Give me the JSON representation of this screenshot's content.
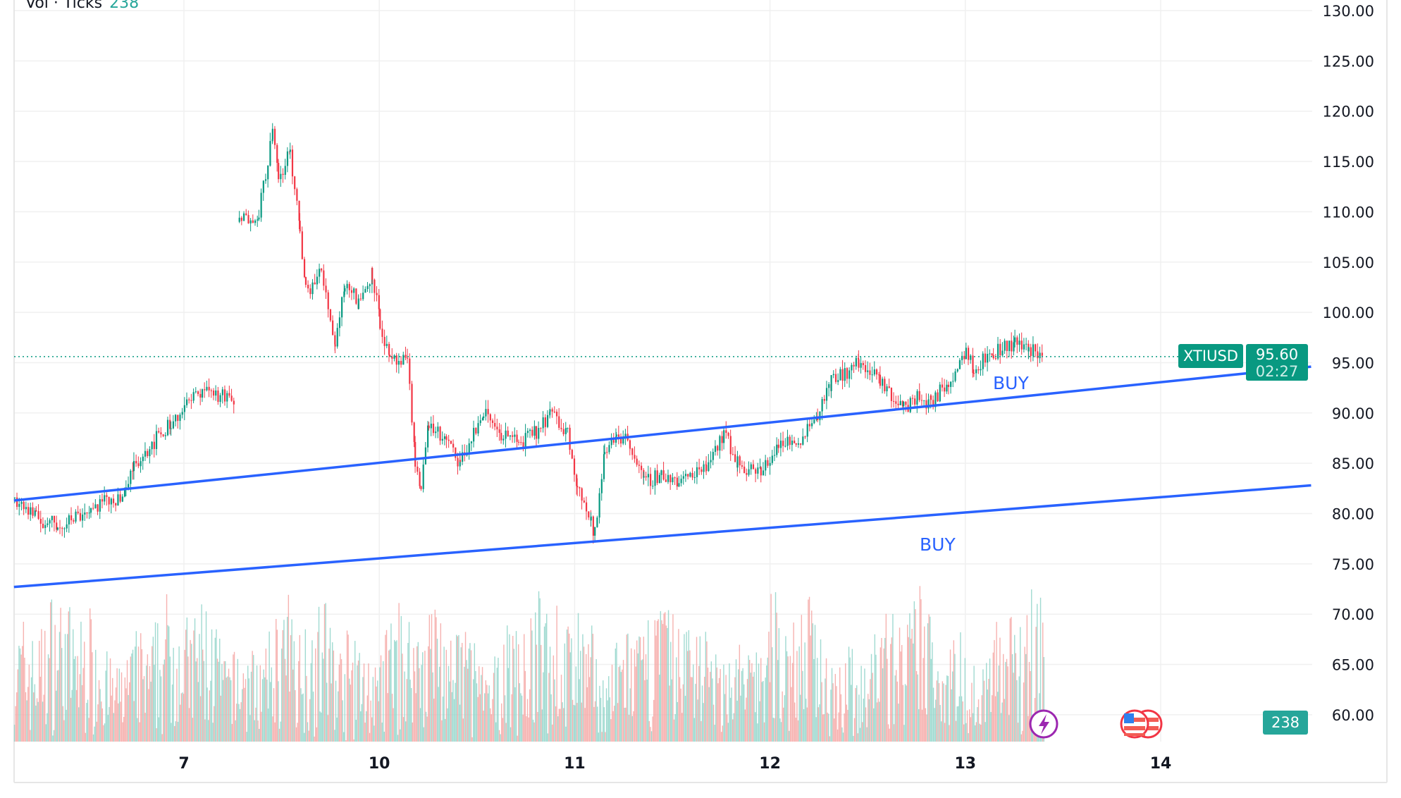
{
  "legend": {
    "label": "Vol · Ticks",
    "value": "238"
  },
  "symbol": "XTIUSD",
  "last_price": "95.60",
  "countdown": "02:27",
  "volume_last": "238",
  "colors": {
    "up": "#089981",
    "down": "#f23645",
    "vol_up": "#8fd3c9",
    "vol_down": "#f5a5a2",
    "trendline": "#2962ff",
    "price_tag": "#089981",
    "vol_tag": "#26a69a"
  },
  "annotations": [
    {
      "text": "BUY"
    },
    {
      "text": "BUY"
    }
  ],
  "icons": [
    "lightning-event-icon",
    "us-flag-icon",
    "us-flag-icon"
  ],
  "chart_data": {
    "type": "candlestick",
    "title": "",
    "x_ticks": [
      "7",
      "10",
      "11",
      "12",
      "13",
      "14"
    ],
    "y_ticks": [
      "130.00",
      "125.00",
      "120.00",
      "115.00",
      "110.00",
      "105.00",
      "100.00",
      "95.00",
      "90.00",
      "85.00",
      "80.00",
      "75.00",
      "70.00",
      "65.00",
      "60.00"
    ],
    "ylim": [
      57,
      130
    ],
    "grid": true,
    "price_path_note_units": "x in date-tick index (7=0, 10=1, 11=2, 12=3, 13=4, 14=5), y in price",
    "price_path": [
      [
        -0.87,
        81.5
      ],
      [
        -0.76,
        79.5
      ],
      [
        -0.65,
        78.8
      ],
      [
        -0.48,
        80.5
      ],
      [
        -0.3,
        82
      ],
      [
        -0.26,
        85
      ],
      [
        -0.07,
        89
      ],
      [
        0.09,
        92.5
      ],
      [
        0.26,
        91
      ],
      [
        0.27,
        101
      ],
      [
        0.28,
        109
      ],
      [
        0.38,
        110
      ],
      [
        0.45,
        118
      ],
      [
        0.48,
        113
      ],
      [
        0.54,
        116
      ],
      [
        0.59,
        108
      ],
      [
        0.62,
        102
      ],
      [
        0.7,
        104
      ],
      [
        0.77,
        97
      ],
      [
        0.82,
        103
      ],
      [
        0.89,
        101
      ],
      [
        0.96,
        104
      ],
      [
        1.0,
        99
      ],
      [
        1.05,
        95
      ],
      [
        1.14,
        95
      ],
      [
        1.18,
        85
      ],
      [
        1.21,
        83
      ],
      [
        1.25,
        89
      ],
      [
        1.34,
        87
      ],
      [
        1.41,
        85
      ],
      [
        1.53,
        90
      ],
      [
        1.62,
        88
      ],
      [
        1.71,
        87
      ],
      [
        1.8,
        88
      ],
      [
        1.87,
        90
      ],
      [
        1.96,
        88
      ],
      [
        2.01,
        83
      ],
      [
        2.08,
        79
      ],
      [
        2.1,
        78
      ],
      [
        2.15,
        86
      ],
      [
        2.21,
        88
      ],
      [
        2.28,
        87
      ],
      [
        2.35,
        83
      ],
      [
        2.44,
        84
      ],
      [
        2.53,
        83
      ],
      [
        2.67,
        85
      ],
      [
        2.76,
        88
      ],
      [
        2.83,
        85
      ],
      [
        2.95,
        84
      ],
      [
        3.04,
        87
      ],
      [
        3.13,
        87
      ],
      [
        3.24,
        90
      ],
      [
        3.31,
        93
      ],
      [
        3.45,
        95
      ],
      [
        3.56,
        93
      ],
      [
        3.68,
        90.5
      ],
      [
        3.75,
        91.5
      ],
      [
        3.82,
        91
      ],
      [
        3.91,
        93
      ],
      [
        4.0,
        96.5
      ],
      [
        4.04,
        94.5
      ],
      [
        4.14,
        96
      ],
      [
        4.25,
        97
      ],
      [
        4.32,
        96.5
      ],
      [
        4.4,
        95.6
      ]
    ],
    "trendlines": [
      {
        "from": [
          -0.87,
          81.3
        ],
        "to": [
          5.77,
          94.6
        ]
      },
      {
        "from": [
          -0.87,
          72.7
        ],
        "to": [
          5.77,
          82.8
        ]
      }
    ],
    "last_price": 95.6,
    "volume_last": 238
  }
}
